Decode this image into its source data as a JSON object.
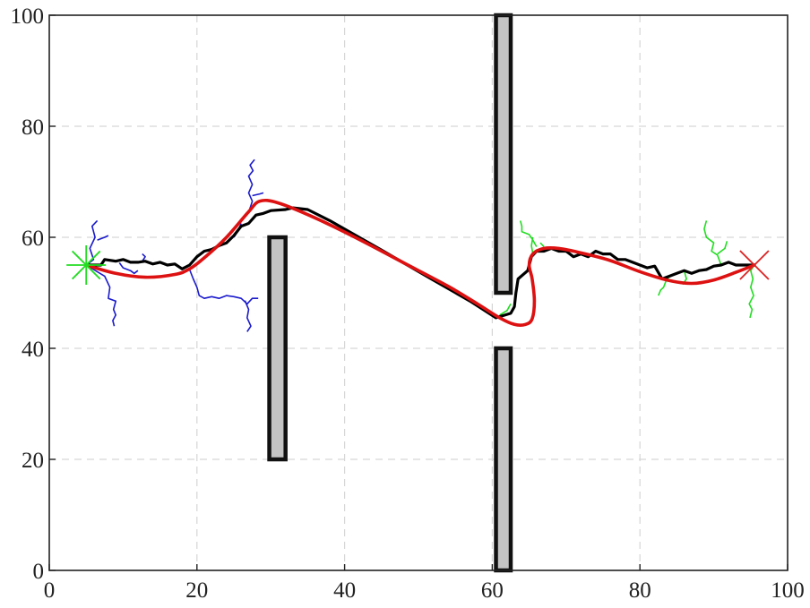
{
  "chart_data": {
    "type": "line",
    "title": "",
    "xlabel": "",
    "ylabel": "",
    "xlim": [
      0,
      100
    ],
    "ylim": [
      0,
      100
    ],
    "grid": true,
    "xticks": [
      "0",
      "20",
      "40",
      "60",
      "80",
      "100"
    ],
    "yticks": [
      "0",
      "20",
      "40",
      "60",
      "80",
      "100"
    ],
    "start": {
      "x": 5,
      "y": 55,
      "marker": "asterisk",
      "color": "#22dd22"
    },
    "goal": {
      "x": 95.5,
      "y": 55,
      "marker": "cross",
      "color": "#dd2222"
    },
    "obstacles": [
      {
        "x0": 29.8,
        "x1": 32,
        "y0": 20,
        "y1": 60
      },
      {
        "x0": 60.5,
        "x1": 62.5,
        "y0": 50,
        "y1": 100
      },
      {
        "x0": 60.5,
        "x1": 62.5,
        "y0": 0,
        "y1": 40
      }
    ],
    "series": [
      {
        "color": "#000000",
        "width": 3.2,
        "points": [
          [
            5,
            55
          ],
          [
            7,
            55
          ],
          [
            7.5,
            56
          ],
          [
            9,
            55.7
          ],
          [
            10,
            56
          ],
          [
            11,
            55.5
          ],
          [
            12,
            55.5
          ],
          [
            13,
            55.7
          ],
          [
            14,
            55.2
          ],
          [
            15,
            55.5
          ],
          [
            16,
            55
          ],
          [
            17,
            55.2
          ],
          [
            18,
            54.3
          ],
          [
            19,
            55
          ],
          [
            20,
            56.5
          ],
          [
            21,
            57.5
          ],
          [
            22,
            57.8
          ],
          [
            23,
            58.5
          ],
          [
            24,
            59
          ],
          [
            25,
            60.3
          ],
          [
            26,
            62
          ],
          [
            27,
            62.5
          ],
          [
            28,
            64
          ],
          [
            29,
            64.3
          ],
          [
            30,
            64.8
          ],
          [
            32,
            65
          ],
          [
            33,
            65.3
          ],
          [
            35,
            65
          ],
          [
            38,
            63
          ],
          [
            45,
            57.7
          ],
          [
            52,
            52.3
          ],
          [
            57,
            48.5
          ],
          [
            60.5,
            45.5
          ],
          [
            62.5,
            46.3
          ],
          [
            63,
            47.5
          ],
          [
            63.2,
            50
          ],
          [
            63.5,
            52.5
          ],
          [
            64.8,
            54
          ],
          [
            65.3,
            56.5
          ],
          [
            66,
            57.5
          ],
          [
            67,
            57.5
          ],
          [
            68,
            58
          ],
          [
            69,
            57.5
          ],
          [
            70,
            57.5
          ],
          [
            71,
            56.5
          ],
          [
            72,
            57
          ],
          [
            73,
            56.5
          ],
          [
            74,
            57.5
          ],
          [
            75,
            57
          ],
          [
            76,
            57
          ],
          [
            77,
            56
          ],
          [
            78,
            56
          ],
          [
            79,
            55.5
          ],
          [
            80,
            55
          ],
          [
            81,
            54.5
          ],
          [
            82,
            54.8
          ],
          [
            83,
            52.5
          ],
          [
            84,
            53
          ],
          [
            85,
            53.5
          ],
          [
            86,
            54
          ],
          [
            87,
            53.5
          ],
          [
            88,
            54
          ],
          [
            89,
            54.2
          ],
          [
            90,
            54.8
          ],
          [
            91,
            55
          ],
          [
            92,
            55.5
          ],
          [
            93,
            55
          ],
          [
            94,
            55
          ],
          [
            95.5,
            55
          ]
        ]
      },
      {
        "color": "#dd1111",
        "width": 3.6,
        "points": [
          [
            5,
            55
          ],
          [
            9,
            53.5
          ],
          [
            13,
            52.8
          ],
          [
            17,
            53.3
          ],
          [
            19,
            54.3
          ],
          [
            21,
            56.3
          ],
          [
            24,
            60
          ],
          [
            27,
            64.6
          ],
          [
            28.5,
            66.5
          ],
          [
            31,
            66.2
          ],
          [
            36,
            63.5
          ],
          [
            42,
            59.6
          ],
          [
            48,
            55.4
          ],
          [
            54,
            51.2
          ],
          [
            58,
            48
          ],
          [
            61,
            45.5
          ],
          [
            63,
            44.3
          ],
          [
            64.5,
            44.3
          ],
          [
            65.4,
            45.3
          ],
          [
            65.7,
            48.5
          ],
          [
            65.4,
            52.5
          ],
          [
            65,
            55
          ],
          [
            65.5,
            57
          ],
          [
            67,
            58
          ],
          [
            69,
            58
          ],
          [
            72,
            57.2
          ],
          [
            76,
            55.8
          ],
          [
            80,
            53.8
          ],
          [
            84,
            52.2
          ],
          [
            87,
            51.7
          ],
          [
            90,
            52.3
          ],
          [
            93,
            53.7
          ],
          [
            95.5,
            55
          ]
        ]
      }
    ],
    "tree_from_start": {
      "color": "#1a1acc",
      "branches": [
        [
          [
            5,
            55
          ],
          [
            6,
            56
          ],
          [
            5.5,
            58
          ],
          [
            6.2,
            60
          ],
          [
            5.8,
            62
          ],
          [
            6.5,
            63
          ]
        ],
        [
          [
            6.5,
            59.5
          ],
          [
            7.5,
            60
          ],
          [
            8,
            60.3
          ]
        ],
        [
          [
            5,
            55
          ],
          [
            7.5,
            53
          ],
          [
            8.2,
            51
          ],
          [
            8,
            49
          ],
          [
            9,
            48.5
          ],
          [
            8.7,
            47
          ],
          [
            9,
            46
          ],
          [
            8.6,
            45
          ],
          [
            8.8,
            44
          ]
        ],
        [
          [
            9.5,
            55.4
          ],
          [
            10,
            54.5
          ],
          [
            11,
            54
          ],
          [
            11.5,
            53.5
          ],
          [
            12,
            54
          ]
        ],
        [
          [
            12.5,
            55.5
          ],
          [
            13,
            56.5
          ],
          [
            12.6,
            57
          ]
        ],
        [
          [
            19,
            54.2
          ],
          [
            19.5,
            52.5
          ],
          [
            20,
            51
          ],
          [
            20.3,
            49.5
          ],
          [
            21,
            49
          ],
          [
            22,
            49.3
          ],
          [
            23,
            49
          ],
          [
            24,
            49.5
          ],
          [
            25,
            49.3
          ],
          [
            26,
            49
          ],
          [
            26.8,
            48
          ],
          [
            27.5,
            49
          ],
          [
            28.3,
            49
          ]
        ],
        [
          [
            26.5,
            48.6
          ],
          [
            27,
            47
          ],
          [
            26.8,
            45.5
          ],
          [
            27.3,
            44
          ],
          [
            26.8,
            43
          ]
        ],
        [
          [
            25,
            60
          ],
          [
            25.5,
            61
          ],
          [
            26,
            62.5
          ]
        ],
        [
          [
            27,
            64.5
          ],
          [
            27.5,
            66.5
          ],
          [
            27,
            68
          ],
          [
            27.5,
            69.5
          ],
          [
            27,
            71
          ],
          [
            27.6,
            72
          ],
          [
            27.2,
            73
          ],
          [
            27.8,
            74
          ]
        ],
        [
          [
            27.5,
            67.5
          ],
          [
            28.5,
            67.8
          ],
          [
            29,
            68
          ]
        ]
      ]
    },
    "tree_from_goal": {
      "color": "#22dd22",
      "branches": [
        [
          [
            61,
            46
          ],
          [
            62,
            46.8
          ],
          [
            62.5,
            48
          ]
        ],
        [
          [
            65.5,
            57
          ],
          [
            65.3,
            58.5
          ],
          [
            65.5,
            60
          ]
        ],
        [
          [
            66,
            58.3
          ],
          [
            65.5,
            59.5
          ],
          [
            65,
            60.5
          ],
          [
            64,
            61
          ],
          [
            64,
            62
          ],
          [
            63.8,
            63
          ]
        ],
        [
          [
            66.5,
            59
          ],
          [
            67,
            58.3
          ]
        ],
        [
          [
            95.5,
            55
          ],
          [
            95,
            54
          ],
          [
            95.3,
            52.5
          ],
          [
            95,
            51
          ],
          [
            95.4,
            49.5
          ],
          [
            94.8,
            48
          ],
          [
            95.2,
            47
          ],
          [
            94.9,
            45.5
          ]
        ],
        [
          [
            91,
            55
          ],
          [
            90.5,
            56.8
          ],
          [
            89.7,
            57.5
          ],
          [
            90,
            59
          ],
          [
            89,
            60
          ],
          [
            88.7,
            61.5
          ],
          [
            89,
            63
          ]
        ],
        [
          [
            90.5,
            57
          ],
          [
            91.5,
            58
          ],
          [
            91.8,
            59.3
          ]
        ],
        [
          [
            84,
            53
          ],
          [
            83.5,
            52
          ],
          [
            83.2,
            51
          ],
          [
            82.8,
            50.5
          ],
          [
            82.5,
            49.5
          ]
        ],
        [
          [
            86,
            54
          ],
          [
            86.3,
            52.5
          ],
          [
            85.8,
            51.5
          ]
        ]
      ]
    }
  }
}
